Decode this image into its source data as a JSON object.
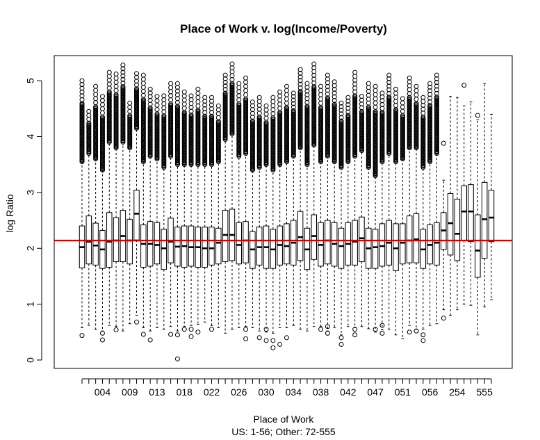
{
  "chart_data": {
    "type": "boxplot",
    "title": "Place of Work v. log(Income/Poverty)",
    "xlabel": "Place of Work",
    "xlabel_sub": "US: 1-56; Other: 72-555",
    "ylabel": "log Ratio",
    "ylim": [
      -0.15,
      5.45
    ],
    "yticks": [
      0,
      1,
      2,
      3,
      4,
      5
    ],
    "xtick_labels_shown": [
      "004",
      "009",
      "013",
      "018",
      "022",
      "026",
      "030",
      "034",
      "038",
      "042",
      "047",
      "051",
      "056",
      "254",
      "555"
    ],
    "reference_line": {
      "y": 2.14,
      "color": "#cc0000"
    },
    "grid": false,
    "legend": "none",
    "box_color": "#000000",
    "boxes": [
      {
        "lo": 0.58,
        "q1": 1.65,
        "med": 2.02,
        "q3": 2.4,
        "hi": 3.55,
        "out_hi": [
          3.55,
          5.0
        ],
        "out_lo": [
          0.44
        ]
      },
      {
        "lo": 0.62,
        "q1": 1.72,
        "med": 2.12,
        "q3": 2.58,
        "hi": 3.7,
        "out_hi": [
          3.7,
          4.45
        ],
        "out_lo": []
      },
      {
        "lo": 0.55,
        "q1": 1.7,
        "med": 2.05,
        "q3": 2.45,
        "hi": 3.6,
        "out_hi": [
          3.6,
          4.9
        ],
        "out_lo": []
      },
      {
        "lo": 0.52,
        "q1": 1.64,
        "med": 1.98,
        "q3": 2.32,
        "hi": 3.4,
        "out_hi": [
          3.4,
          4.72
        ],
        "out_lo": [
          0.36,
          0.48
        ]
      },
      {
        "lo": 0.62,
        "q1": 1.66,
        "med": 2.12,
        "q3": 2.64,
        "hi": 3.9,
        "out_hi": [
          3.9,
          5.15
        ],
        "out_lo": []
      },
      {
        "lo": 0.6,
        "q1": 1.76,
        "med": 2.14,
        "q3": 2.55,
        "hi": 3.8,
        "out_hi": [
          3.8,
          5.12
        ],
        "out_lo": [
          0.54
        ]
      },
      {
        "lo": 0.52,
        "q1": 1.76,
        "med": 2.22,
        "q3": 2.68,
        "hi": 3.9,
        "out_hi": [
          3.9,
          5.28
        ],
        "out_lo": []
      },
      {
        "lo": 0.65,
        "q1": 1.72,
        "med": 2.14,
        "q3": 2.52,
        "hi": 3.8,
        "out_hi": [
          3.8,
          4.6
        ],
        "out_lo": []
      },
      {
        "lo": 0.8,
        "q1": 2.15,
        "med": 2.62,
        "q3": 3.04,
        "hi": 4.15,
        "out_hi": [
          4.15,
          5.13
        ],
        "out_lo": [
          0.68
        ]
      },
      {
        "lo": 0.58,
        "q1": 1.66,
        "med": 2.08,
        "q3": 2.42,
        "hi": 3.55,
        "out_hi": [
          3.55,
          5.1
        ],
        "out_lo": [
          0.46
        ]
      },
      {
        "lo": 0.52,
        "q1": 1.68,
        "med": 2.08,
        "q3": 2.48,
        "hi": 3.65,
        "out_hi": [
          3.65,
          4.85
        ],
        "out_lo": [
          0.36
        ]
      },
      {
        "lo": 0.58,
        "q1": 1.72,
        "med": 2.06,
        "q3": 2.46,
        "hi": 3.6,
        "out_hi": [
          3.6,
          4.72
        ],
        "out_lo": []
      },
      {
        "lo": 0.55,
        "q1": 1.62,
        "med": 2.0,
        "q3": 2.34,
        "hi": 3.45,
        "out_hi": [
          3.45,
          4.73
        ],
        "out_lo": []
      },
      {
        "lo": 0.6,
        "q1": 1.74,
        "med": 2.12,
        "q3": 2.54,
        "hi": 3.65,
        "out_hi": [
          3.65,
          4.95
        ],
        "out_lo": [
          0.46
        ]
      },
      {
        "lo": 0.52,
        "q1": 1.68,
        "med": 2.03,
        "q3": 2.38,
        "hi": 3.5,
        "out_hi": [
          3.5,
          4.95
        ],
        "out_lo": [
          0.45,
          0.02
        ]
      },
      {
        "lo": 0.6,
        "q1": 1.66,
        "med": 2.04,
        "q3": 2.4,
        "hi": 3.5,
        "out_hi": [
          3.5,
          4.8
        ],
        "out_lo": [
          0.55
        ]
      },
      {
        "lo": 0.62,
        "q1": 1.68,
        "med": 2.02,
        "q3": 2.4,
        "hi": 3.5,
        "out_hi": [
          3.5,
          4.73
        ],
        "out_lo": [
          0.42,
          0.55
        ]
      },
      {
        "lo": 0.64,
        "q1": 1.66,
        "med": 2.02,
        "q3": 2.38,
        "hi": 3.5,
        "out_hi": [
          3.5,
          4.85
        ],
        "out_lo": [
          0.5
        ]
      },
      {
        "lo": 0.68,
        "q1": 1.66,
        "med": 2.0,
        "q3": 2.38,
        "hi": 3.5,
        "out_hi": [
          3.5,
          4.7
        ],
        "out_lo": []
      },
      {
        "lo": 0.62,
        "q1": 1.7,
        "med": 2.0,
        "q3": 2.38,
        "hi": 3.5,
        "out_hi": [
          3.5,
          4.7
        ],
        "out_lo": [
          0.55
        ]
      },
      {
        "lo": 0.58,
        "q1": 1.72,
        "med": 2.1,
        "q3": 2.36,
        "hi": 3.55,
        "out_hi": [
          3.55,
          4.55
        ],
        "out_lo": []
      },
      {
        "lo": 0.48,
        "q1": 1.76,
        "med": 2.24,
        "q3": 2.68,
        "hi": 3.95,
        "out_hi": [
          3.95,
          5.1
        ],
        "out_lo": []
      },
      {
        "lo": 0.55,
        "q1": 1.78,
        "med": 2.24,
        "q3": 2.7,
        "hi": 4.05,
        "out_hi": [
          4.05,
          5.3
        ],
        "out_lo": []
      },
      {
        "lo": 0.58,
        "q1": 1.72,
        "med": 2.06,
        "q3": 2.46,
        "hi": 3.65,
        "out_hi": [
          3.65,
          4.95
        ],
        "out_lo": []
      },
      {
        "lo": 0.6,
        "q1": 1.74,
        "med": 2.14,
        "q3": 2.48,
        "hi": 3.7,
        "out_hi": [
          3.7,
          5.05
        ],
        "out_lo": [
          0.38,
          0.55
        ]
      },
      {
        "lo": 0.58,
        "q1": 1.64,
        "med": 1.98,
        "q3": 2.3,
        "hi": 3.4,
        "out_hi": [
          3.4,
          4.62
        ],
        "out_lo": []
      },
      {
        "lo": 0.52,
        "q1": 1.7,
        "med": 2.02,
        "q3": 2.38,
        "hi": 3.45,
        "out_hi": [
          3.45,
          4.7
        ],
        "out_lo": [
          0.4
        ]
      },
      {
        "lo": 0.5,
        "q1": 1.64,
        "med": 2.02,
        "q3": 2.4,
        "hi": 3.5,
        "out_hi": [
          3.5,
          4.55
        ],
        "out_lo": [
          0.35,
          0.55
        ]
      },
      {
        "lo": 0.48,
        "q1": 1.64,
        "med": 1.98,
        "q3": 2.34,
        "hi": 3.4,
        "out_hi": [
          3.4,
          4.7
        ],
        "out_lo": [
          0.22,
          0.35
        ]
      },
      {
        "lo": 0.58,
        "q1": 1.7,
        "med": 2.06,
        "q3": 2.4,
        "hi": 3.5,
        "out_hi": [
          3.5,
          4.8
        ],
        "out_lo": [
          0.28
        ]
      },
      {
        "lo": 0.58,
        "q1": 1.72,
        "med": 2.04,
        "q3": 2.44,
        "hi": 3.55,
        "out_hi": [
          3.55,
          4.9
        ],
        "out_lo": [
          0.4
        ]
      },
      {
        "lo": 0.62,
        "q1": 1.7,
        "med": 2.1,
        "q3": 2.5,
        "hi": 3.65,
        "out_hi": [
          3.65,
          4.78
        ],
        "out_lo": []
      },
      {
        "lo": 0.55,
        "q1": 1.78,
        "med": 2.2,
        "q3": 2.66,
        "hi": 3.8,
        "out_hi": [
          3.8,
          5.2
        ],
        "out_lo": []
      },
      {
        "lo": 0.52,
        "q1": 1.62,
        "med": 1.98,
        "q3": 2.36,
        "hi": 3.5,
        "out_hi": [
          3.5,
          4.95
        ],
        "out_lo": []
      },
      {
        "lo": 0.6,
        "q1": 1.8,
        "med": 2.22,
        "q3": 2.6,
        "hi": 3.85,
        "out_hi": [
          3.85,
          5.3
        ],
        "out_lo": []
      },
      {
        "lo": 0.6,
        "q1": 1.68,
        "med": 2.06,
        "q3": 2.46,
        "hi": 3.55,
        "out_hi": [
          3.55,
          4.9
        ],
        "out_lo": [
          0.55
        ]
      },
      {
        "lo": 0.52,
        "q1": 1.72,
        "med": 2.14,
        "q3": 2.5,
        "hi": 3.65,
        "out_hi": [
          3.65,
          5.1
        ],
        "out_lo": [
          0.48,
          0.6
        ]
      },
      {
        "lo": 0.58,
        "q1": 1.68,
        "med": 2.08,
        "q3": 2.46,
        "hi": 3.55,
        "out_hi": [
          3.55,
          4.98
        ],
        "out_lo": []
      },
      {
        "lo": 0.45,
        "q1": 1.64,
        "med": 2.04,
        "q3": 2.36,
        "hi": 3.45,
        "out_hi": [
          3.45,
          4.6
        ],
        "out_lo": [
          0.28,
          0.4
        ]
      },
      {
        "lo": 0.6,
        "q1": 1.7,
        "med": 2.08,
        "q3": 2.46,
        "hi": 3.55,
        "out_hi": [
          3.55,
          4.7
        ],
        "out_lo": []
      },
      {
        "lo": 0.58,
        "q1": 1.7,
        "med": 2.12,
        "q3": 2.5,
        "hi": 3.65,
        "out_hi": [
          3.65,
          5.15
        ],
        "out_lo": [
          0.45,
          0.55
        ]
      },
      {
        "lo": 0.6,
        "q1": 1.76,
        "med": 2.18,
        "q3": 2.56,
        "hi": 3.75,
        "out_hi": [
          3.75,
          4.72
        ],
        "out_lo": []
      },
      {
        "lo": 0.56,
        "q1": 1.64,
        "med": 2.0,
        "q3": 2.36,
        "hi": 3.45,
        "out_hi": [
          3.45,
          4.95
        ],
        "out_lo": []
      },
      {
        "lo": 0.5,
        "q1": 1.64,
        "med": 2.02,
        "q3": 2.34,
        "hi": 3.3,
        "out_hi": [
          3.3,
          4.9
        ],
        "out_lo": [
          0.55
        ]
      },
      {
        "lo": 0.54,
        "q1": 1.68,
        "med": 2.04,
        "q3": 2.44,
        "hi": 3.55,
        "out_hi": [
          3.55,
          4.78
        ],
        "out_lo": [
          0.48,
          0.62
        ]
      },
      {
        "lo": 0.55,
        "q1": 1.7,
        "med": 2.1,
        "q3": 2.5,
        "hi": 3.7,
        "out_hi": [
          3.7,
          5.1
        ],
        "out_lo": []
      },
      {
        "lo": 0.45,
        "q1": 1.6,
        "med": 2.0,
        "q3": 2.44,
        "hi": 3.55,
        "out_hi": [
          3.55,
          4.85
        ],
        "out_lo": []
      },
      {
        "lo": 0.38,
        "q1": 1.72,
        "med": 2.1,
        "q3": 2.44,
        "hi": 3.6,
        "out_hi": [
          3.6,
          4.68
        ],
        "out_lo": []
      },
      {
        "lo": 0.62,
        "q1": 1.74,
        "med": 2.14,
        "q3": 2.58,
        "hi": 3.8,
        "out_hi": [
          3.8,
          5.05
        ],
        "out_lo": [
          0.5
        ]
      },
      {
        "lo": 0.55,
        "q1": 1.74,
        "med": 2.16,
        "q3": 2.62,
        "hi": 3.8,
        "out_hi": [
          3.8,
          4.9
        ],
        "out_lo": [
          0.52
        ]
      },
      {
        "lo": 0.55,
        "q1": 1.64,
        "med": 1.98,
        "q3": 2.34,
        "hi": 3.45,
        "out_hi": [
          3.45,
          4.7
        ],
        "out_lo": [
          0.35,
          0.45
        ]
      },
      {
        "lo": 0.62,
        "q1": 1.72,
        "med": 2.06,
        "q3": 2.42,
        "hi": 3.55,
        "out_hi": [
          3.55,
          4.95
        ],
        "out_lo": []
      },
      {
        "lo": 0.65,
        "q1": 1.7,
        "med": 2.1,
        "q3": 2.46,
        "hi": 3.7,
        "out_hi": [
          3.7,
          5.1
        ],
        "out_lo": []
      },
      {
        "lo": 0.9,
        "q1": 1.98,
        "med": 2.32,
        "q3": 2.64,
        "hi": 3.22,
        "out_hi": [
          3.88
        ],
        "out_lo": [
          0.75
        ]
      },
      {
        "lo": 0.8,
        "q1": 1.88,
        "med": 2.45,
        "q3": 2.98,
        "hi": 4.72,
        "out_hi": [],
        "out_lo": []
      },
      {
        "lo": 0.9,
        "q1": 1.78,
        "med": 2.26,
        "q3": 2.88,
        "hi": 4.7,
        "out_hi": [],
        "out_lo": []
      },
      {
        "lo": 1.0,
        "q1": 2.14,
        "med": 2.66,
        "q3": 3.12,
        "hi": 4.55,
        "out_hi": [
          4.92
        ],
        "out_lo": []
      },
      {
        "lo": 0.98,
        "q1": 2.12,
        "med": 2.66,
        "q3": 3.14,
        "hi": 4.62,
        "out_hi": [],
        "out_lo": []
      },
      {
        "lo": 0.45,
        "q1": 1.48,
        "med": 1.96,
        "q3": 2.6,
        "hi": 4.3,
        "out_hi": [
          4.38
        ],
        "out_lo": []
      },
      {
        "lo": 0.95,
        "q1": 1.82,
        "med": 2.52,
        "q3": 3.18,
        "hi": 4.95,
        "out_hi": [],
        "out_lo": []
      },
      {
        "lo": 1.08,
        "q1": 2.12,
        "med": 2.55,
        "q3": 3.04,
        "hi": 4.4,
        "out_hi": [],
        "out_lo": []
      }
    ]
  }
}
